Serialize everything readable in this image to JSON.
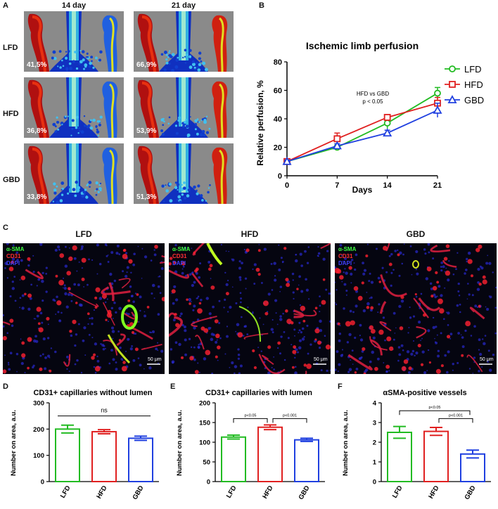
{
  "panels": {
    "a": "A",
    "b": "B",
    "c": "C",
    "d": "D",
    "e": "E",
    "f": "F"
  },
  "panelA": {
    "columns": [
      "14 day",
      "21 day"
    ],
    "rows": [
      {
        "label": "LFD",
        "values": [
          "41,5%",
          "66,9%"
        ]
      },
      {
        "label": "HFD",
        "values": [
          "36,8%",
          "53,9%"
        ]
      },
      {
        "label": "GBD",
        "values": [
          "33,8%",
          "51,3%"
        ]
      }
    ]
  },
  "panelC": {
    "headers": [
      "LFD",
      "HFD",
      "GBD"
    ],
    "stains": [
      "α-SMA",
      "CD31",
      "DAPI"
    ],
    "scale": "50 μm"
  },
  "colors": {
    "LFD": "#22bb22",
    "HFD": "#e02020",
    "GBD": "#2040e0"
  },
  "chart_data": [
    {
      "type": "line",
      "title": "Ischemic limb perfusion",
      "xlabel": "Days",
      "ylabel": "Relative perfusion, %",
      "x": [
        0,
        7,
        14,
        21
      ],
      "xlim": [
        0,
        21
      ],
      "ylim": [
        0,
        80
      ],
      "yticks": [
        0,
        20,
        40,
        60,
        80
      ],
      "annotation": [
        "HFD vs GBD",
        "p < 0.05"
      ],
      "legend": "right",
      "series": [
        {
          "name": "LFD",
          "marker": "circle",
          "values": [
            10,
            20,
            37,
            58
          ],
          "err": [
            1,
            1.5,
            4,
            4
          ]
        },
        {
          "name": "HFD",
          "marker": "square",
          "values": [
            10,
            26,
            41,
            51
          ],
          "err": [
            1,
            4,
            2,
            4
          ]
        },
        {
          "name": "GBD",
          "marker": "triangle",
          "values": [
            10,
            21,
            30,
            46
          ],
          "err": [
            1,
            1.5,
            2,
            5
          ]
        }
      ]
    },
    {
      "type": "bar",
      "title": "CD31+ capillaries without lumen",
      "ylabel": "Number on area, a.u.",
      "categories": [
        "LFD",
        "HFD",
        "GBD"
      ],
      "values": [
        200,
        190,
        165
      ],
      "err": [
        15,
        8,
        8
      ],
      "ylim": [
        0,
        300
      ],
      "yticks": [
        0,
        100,
        200,
        300
      ],
      "sig": [
        {
          "from": 0,
          "to": 2,
          "label": "ns",
          "y": 250
        }
      ]
    },
    {
      "type": "bar",
      "title": "CD31+ capillaries with lumen",
      "ylabel": "Number on area, a.u.",
      "categories": [
        "LFD",
        "HFD",
        "GBD"
      ],
      "values": [
        113,
        138,
        106
      ],
      "err": [
        5,
        6,
        4
      ],
      "ylim": [
        0,
        200
      ],
      "yticks": [
        0,
        50,
        100,
        150,
        200
      ],
      "sig": [
        {
          "from": 0,
          "to": 1,
          "label": "p<0.05",
          "y": 160
        },
        {
          "from": 1,
          "to": 2,
          "label": "p<0.001",
          "y": 160
        }
      ]
    },
    {
      "type": "bar",
      "title": "αSMA-positive vessels",
      "ylabel": "Number on area, a.u.",
      "categories": [
        "LFD",
        "HFD",
        "GBD"
      ],
      "values": [
        2.5,
        2.55,
        1.4
      ],
      "err": [
        0.3,
        0.2,
        0.2
      ],
      "ylim": [
        0,
        4
      ],
      "yticks": [
        0,
        1,
        2,
        3,
        4
      ],
      "sig": [
        {
          "from": 0,
          "to": 2,
          "label": "p<0.05",
          "y": 3.6
        },
        {
          "from": 1,
          "to": 2,
          "label": "p<0.001",
          "y": 3.2
        }
      ]
    }
  ]
}
